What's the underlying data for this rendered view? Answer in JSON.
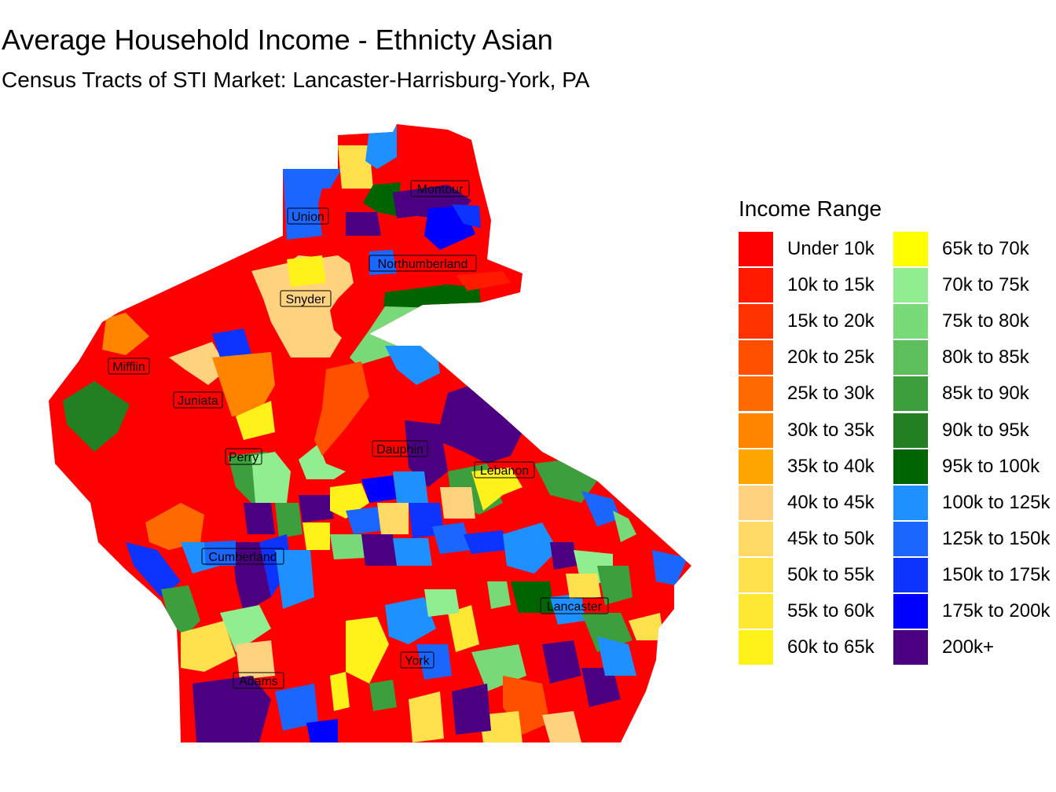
{
  "title": "Average Household Income - Ethnicty Asian",
  "subtitle": "Census Tracts of STI Market: Lancaster-Harrisburg-York, PA",
  "legend": {
    "title": "Income Range",
    "items": [
      {
        "label": "Under 10k",
        "color": "#FF0000"
      },
      {
        "label": "10k to 15k",
        "color": "#FF1A00"
      },
      {
        "label": "15k to 20k",
        "color": "#FF3300"
      },
      {
        "label": "20k to 25k",
        "color": "#FF5000"
      },
      {
        "label": "25k to 30k",
        "color": "#FF6A00"
      },
      {
        "label": "30k to 35k",
        "color": "#FF8500"
      },
      {
        "label": "35k to 40k",
        "color": "#FFA500"
      },
      {
        "label": "40k to 45k",
        "color": "#FFD27F"
      },
      {
        "label": "45k to 50k",
        "color": "#FFD966"
      },
      {
        "label": "50k to 55k",
        "color": "#FFE04D"
      },
      {
        "label": "55k to 60k",
        "color": "#FFE833"
      },
      {
        "label": "60k to 65k",
        "color": "#FFF21A"
      },
      {
        "label": "65k to 70k",
        "color": "#FFFF00"
      },
      {
        "label": "70k to 75k",
        "color": "#90EE90"
      },
      {
        "label": "75k to 80k",
        "color": "#77D977"
      },
      {
        "label": "80k to 85k",
        "color": "#5CBF5C"
      },
      {
        "label": "85k to 90k",
        "color": "#3C9E3C"
      },
      {
        "label": "90k to 95k",
        "color": "#228022"
      },
      {
        "label": "95k to 100k",
        "color": "#006400"
      },
      {
        "label": "100k to 125k",
        "color": "#1E90FF"
      },
      {
        "label": "125k to 150k",
        "color": "#1A66FF"
      },
      {
        "label": "150k to 175k",
        "color": "#0D33FF"
      },
      {
        "label": "175k to 200k",
        "color": "#0000FF"
      },
      {
        "label": "200k+",
        "color": "#4B0082"
      }
    ]
  },
  "counties": [
    {
      "name": "Montour"
    },
    {
      "name": "Union"
    },
    {
      "name": "Northumberland"
    },
    {
      "name": "Snyder"
    },
    {
      "name": "Mifflin"
    },
    {
      "name": "Juniata"
    },
    {
      "name": "Dauphin"
    },
    {
      "name": "Lebanon"
    },
    {
      "name": "Perry"
    },
    {
      "name": "Cumberland"
    },
    {
      "name": "Lancaster"
    },
    {
      "name": "York"
    },
    {
      "name": "Adams"
    }
  ]
}
